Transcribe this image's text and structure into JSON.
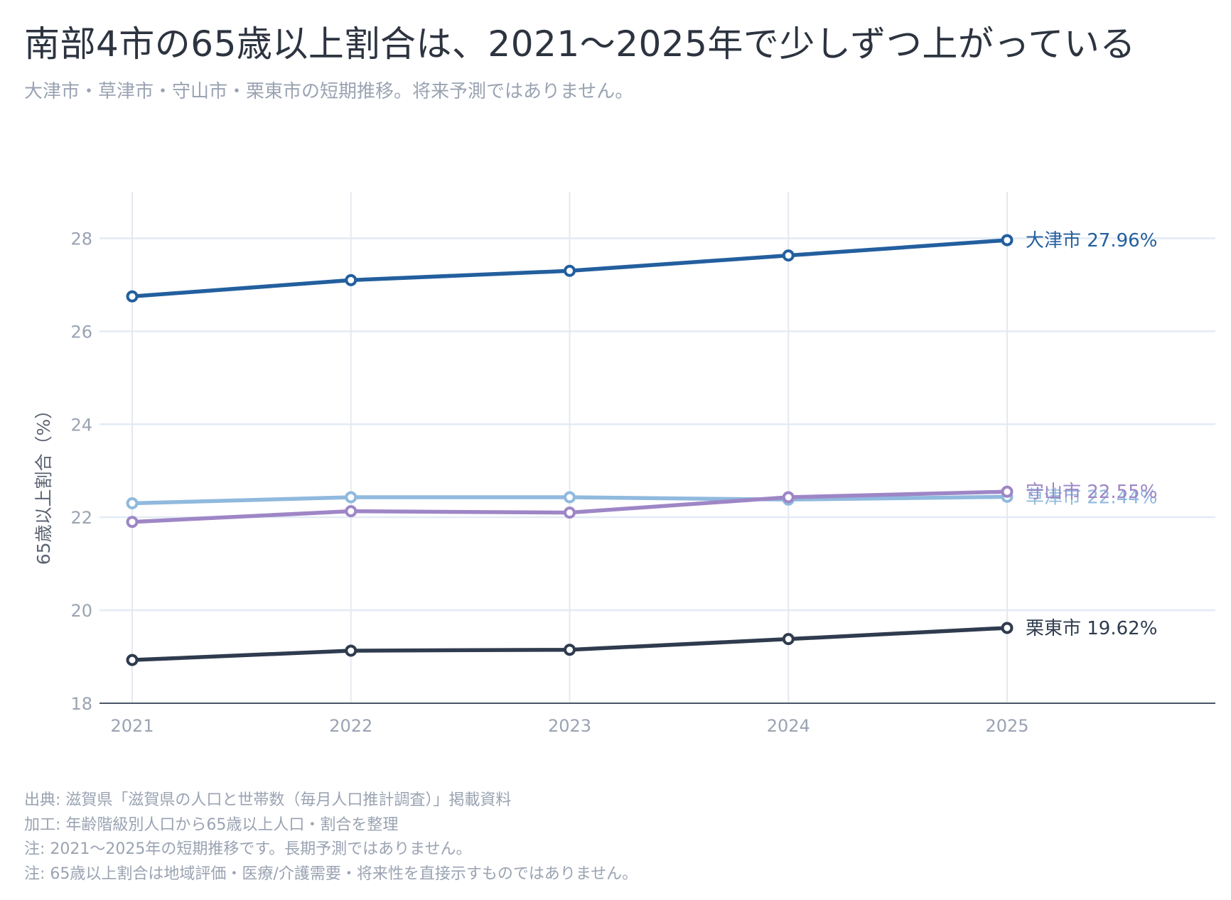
{
  "title": "南部4市の65歳以上割合は、2021〜2025年で少しずつ上がっている",
  "subtitle": "大津市・草津市・守山市・栗東市の短期推移。将来予測ではありません。",
  "chart_data": {
    "type": "line",
    "x": [
      "2021",
      "2022",
      "2023",
      "2024",
      "2025"
    ],
    "ylabel": "65歳以上割合（%）",
    "xlabel": "",
    "ylim": [
      18,
      29
    ],
    "yticks": [
      18,
      20,
      22,
      24,
      26,
      28
    ],
    "grid": true,
    "series": [
      {
        "name": "大津市",
        "values": [
          26.75,
          27.1,
          27.3,
          27.63,
          27.96
        ],
        "color": "#235f9e",
        "end_label": "大津市 27.96%"
      },
      {
        "name": "草津市",
        "values": [
          22.3,
          22.43,
          22.43,
          22.38,
          22.44
        ],
        "color": "#90b9de",
        "end_label": "草津市 22.44%"
      },
      {
        "name": "守山市",
        "values": [
          21.9,
          22.13,
          22.1,
          22.43,
          22.55
        ],
        "color": "#9e86c6",
        "end_label": "守山市 22.55%"
      },
      {
        "name": "栗東市",
        "values": [
          18.93,
          19.13,
          19.15,
          19.38,
          19.62
        ],
        "color": "#2f3b4e",
        "end_label": "栗東市 19.62%"
      }
    ]
  },
  "notes": [
    "出典: 滋賀県「滋賀県の人口と世帯数（毎月人口推計調査）」掲載資料",
    "加工: 年齢階級別人口から65歳以上人口・割合を整理",
    "注: 2021〜2025年の短期推移です。長期予測ではありません。",
    "注: 65歳以上割合は地域評価・医療/介護需要・将来性を直接示すものではありません。"
  ]
}
